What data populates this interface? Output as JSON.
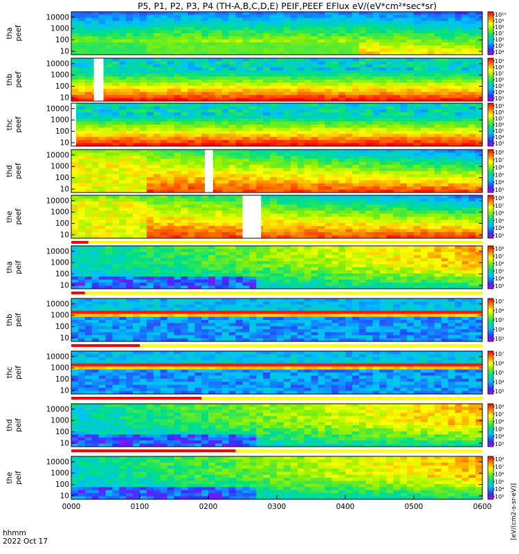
{
  "title": "P5, P1, P2, P3, P4 (TH-A,B,C,D,E) PEIF,PEEF EFlux eV/(eV*cm²*sec*sr)",
  "footer": {
    "axis_name": "hhmm",
    "date": "2022 Oct 17"
  },
  "x_ticks": [
    "0000",
    "0100",
    "0200",
    "0300",
    "0400",
    "0500",
    "0600"
  ],
  "cb_units": "[eV/(cm2-s-sr-eV)]",
  "chart_data": {
    "type": "heatmap",
    "title": "P5, P1, P2, P3, P4 (TH-A,B,C,D,E) PEIF,PEEF EFlux eV/(eV*cm²*sec*sr)",
    "xlabel": "hhmm",
    "date": "2022 Oct 17",
    "x_range_hours": [
      0,
      6
    ],
    "y_scale": "log",
    "y_range_eV": [
      5,
      30000
    ],
    "y_ticks": [
      10,
      100,
      1000,
      10000
    ],
    "panels": [
      {
        "probe": "tha",
        "species": "peef",
        "label_top": "tha",
        "label_bottom": "peef",
        "cb_ticks": [
          "10⁴",
          "10⁵",
          "10⁶",
          "10⁷",
          "10⁸",
          "10⁹",
          "10¹⁰"
        ],
        "gaps_hours": [],
        "shading": "electron"
      },
      {
        "probe": "thb",
        "species": "peef",
        "label_top": "thb",
        "label_bottom": "peef",
        "cb_ticks": [
          "10³",
          "10⁴",
          "10⁵",
          "10⁶",
          "10⁷",
          "10⁸",
          "10⁹"
        ],
        "gaps_hours": [
          [
            0.33,
            0.47
          ]
        ],
        "shading": "electron"
      },
      {
        "probe": "thc",
        "species": "peef",
        "label_top": "thc",
        "label_bottom": "peef",
        "cb_ticks": [
          "10³",
          "10⁴",
          "10⁵",
          "10⁶",
          "10⁷",
          "10⁸",
          "10⁹"
        ],
        "gaps_hours": [
          [
            0.0,
            0.07
          ]
        ],
        "shading": "electron"
      },
      {
        "probe": "thd",
        "species": "peef",
        "label_top": "thd",
        "label_bottom": "peef",
        "cb_ticks": [
          "10³",
          "10⁴",
          "10⁵",
          "10⁶",
          "10⁷",
          "10⁸"
        ],
        "gaps_hours": [
          [
            1.95,
            2.07
          ]
        ],
        "shading": "electron"
      },
      {
        "probe": "the",
        "species": "peef",
        "label_top": "the",
        "label_bottom": "peef",
        "cb_ticks": [
          "10³",
          "10⁴",
          "10⁵",
          "10⁶",
          "10⁷",
          "10⁸"
        ],
        "gaps_hours": [
          [
            2.5,
            2.77
          ]
        ],
        "shading": "electron"
      },
      {
        "probe": "tha",
        "species": "peif",
        "label_top": "tha",
        "label_bottom": "peif",
        "cb_ticks": [
          "10³",
          "10⁴",
          "10⁵",
          "10⁶",
          "10⁷",
          "10⁸"
        ],
        "gaps_hours": [],
        "shading": "ion"
      },
      {
        "probe": "thb",
        "species": "peif",
        "label_top": "thb",
        "label_bottom": "peif",
        "cb_ticks": [
          "10³",
          "10⁴",
          "10⁵",
          "10⁶",
          "10⁷"
        ],
        "gaps_hours": [],
        "shading": "ion-band"
      },
      {
        "probe": "thc",
        "species": "peif",
        "label_top": "thc",
        "label_bottom": "peif",
        "cb_ticks": [
          "10³",
          "10⁴",
          "10⁵",
          "10⁶",
          "10⁷"
        ],
        "gaps_hours": [],
        "shading": "ion-band"
      },
      {
        "probe": "thd",
        "species": "peif",
        "label_top": "thd",
        "label_bottom": "peif",
        "cb_ticks": [
          "10³",
          "10⁴",
          "10⁵",
          "10⁶",
          "10⁷",
          "10⁸"
        ],
        "gaps_hours": [],
        "shading": "ion"
      },
      {
        "probe": "the",
        "species": "peif",
        "label_top": "the",
        "label_bottom": "peif",
        "cb_ticks": [
          "10³",
          "10⁴",
          "10⁵",
          "10⁶",
          "10⁷",
          "10⁸"
        ],
        "gaps_hours": [],
        "shading": "ion"
      }
    ],
    "mode_bars": [
      {
        "after_panel": 4,
        "red_until_hours": 0.25
      },
      {
        "after_panel": 5,
        "red_until_hours": 0.2
      },
      {
        "after_panel": 6,
        "red_until_hours": 1.0
      },
      {
        "after_panel": 7,
        "red_until_hours": 1.9
      },
      {
        "after_panel": 8,
        "red_until_hours": 2.4
      }
    ]
  }
}
